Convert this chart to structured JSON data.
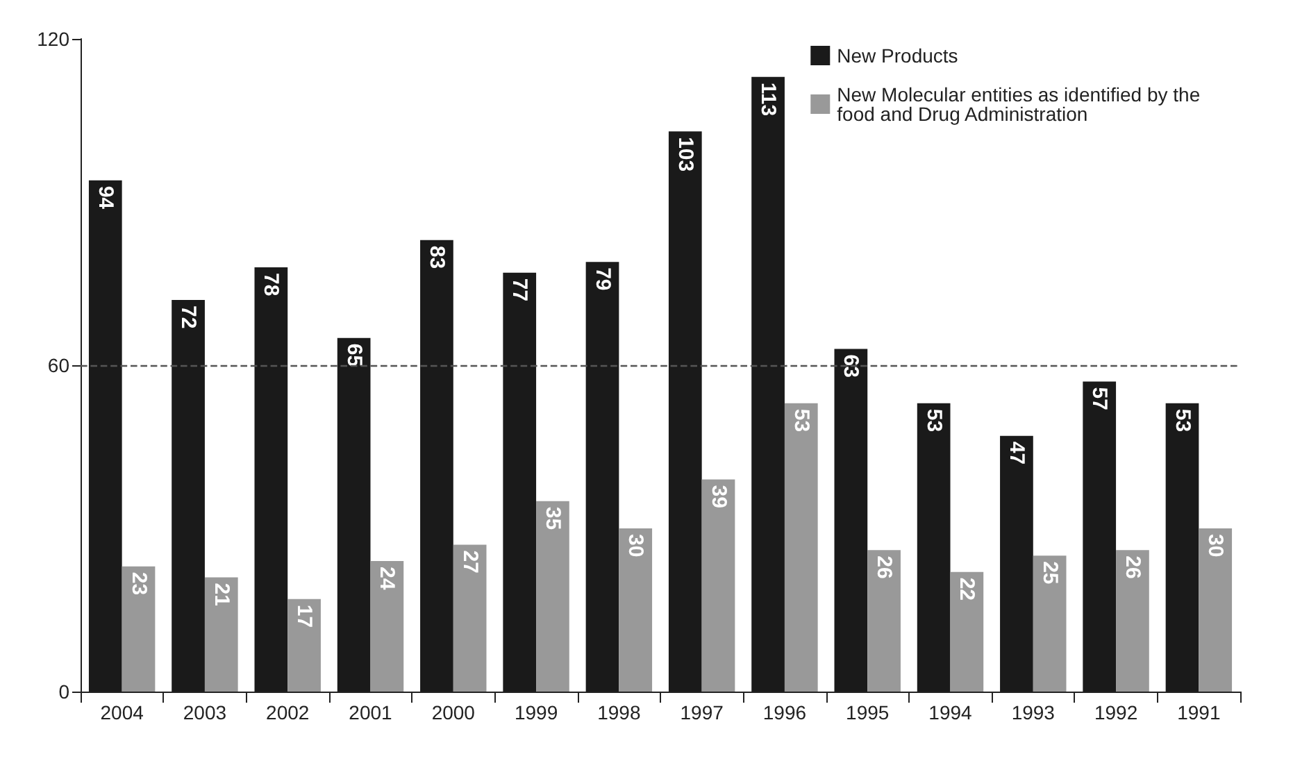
{
  "chart_data": {
    "type": "bar",
    "categories": [
      "2004",
      "2003",
      "2002",
      "2001",
      "2000",
      "1999",
      "1998",
      "1997",
      "1996",
      "1995",
      "1994",
      "1993",
      "1992",
      "1991"
    ],
    "series": [
      {
        "name": "New Products",
        "color": "#1a1a1a",
        "values": [
          94,
          72,
          78,
          65,
          83,
          77,
          79,
          103,
          113,
          63,
          53,
          47,
          57,
          53
        ]
      },
      {
        "name": "New Molecular entities as identified by the food and Drug Administration",
        "color": "#999999",
        "values": [
          23,
          21,
          17,
          24,
          27,
          35,
          30,
          39,
          53,
          26,
          22,
          25,
          26,
          30
        ]
      }
    ],
    "ylim": [
      0,
      120
    ],
    "yticks": [
      0,
      60,
      120
    ],
    "data_labels": true,
    "legend": "top right",
    "grid": false,
    "ref_lines": [
      {
        "axis": "y",
        "value": 60,
        "line_style": "dashed",
        "color": "#555555"
      }
    ]
  }
}
